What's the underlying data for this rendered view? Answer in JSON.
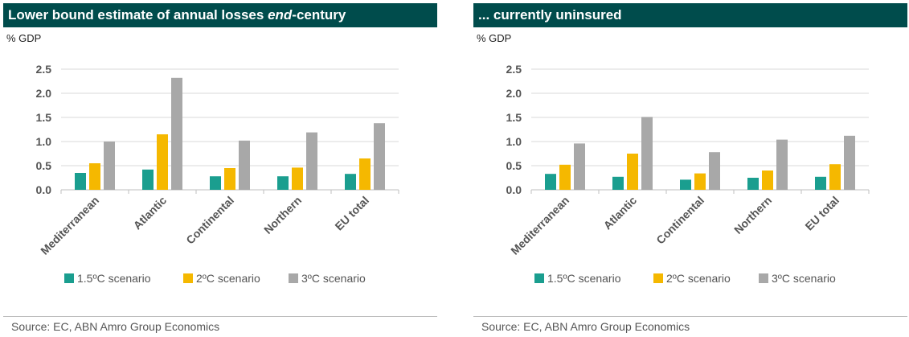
{
  "colors": {
    "title_bg": "#004c4c",
    "s15": "#1a9e8f",
    "s2": "#f5b800",
    "s3": "#a8a8a8"
  },
  "panels": [
    {
      "title_pre": "Lower bound estimate of annual losses ",
      "title_em": "end",
      "title_post": "-century",
      "unit": "% GDP",
      "source": "Source: EC, ABN Amro Group Economics"
    },
    {
      "title_pre": "... currently uninsured",
      "title_em": "",
      "title_post": "",
      "unit": "% GDP",
      "source": "Source: EC, ABN Amro Group Economics"
    }
  ],
  "chart_data": [
    {
      "type": "bar",
      "title": "Lower bound estimate of annual losses end-century",
      "ylabel": "% GDP",
      "categories": [
        "Mediterranean",
        "Atlantic",
        "Continental",
        "Northern",
        "EU total"
      ],
      "series": [
        {
          "name": "1.5ºC scenario",
          "color": "#1a9e8f",
          "values": [
            0.35,
            0.42,
            0.28,
            0.28,
            0.33
          ]
        },
        {
          "name": "2ºC scenario",
          "color": "#f5b800",
          "values": [
            0.55,
            1.15,
            0.45,
            0.46,
            0.65
          ]
        },
        {
          "name": "3ºC scenario",
          "color": "#a8a8a8",
          "values": [
            1.0,
            2.32,
            1.02,
            1.19,
            1.38
          ]
        }
      ],
      "ylim": [
        0,
        2.5
      ],
      "yticks": [
        "0.0",
        "0.5",
        "1.0",
        "1.5",
        "2.0",
        "2.5"
      ],
      "grid": true,
      "legend": "bottom"
    },
    {
      "type": "bar",
      "title": "... currently uninsured",
      "ylabel": "% GDP",
      "categories": [
        "Mediterranean",
        "Atlantic",
        "Continental",
        "Northern",
        "EU total"
      ],
      "series": [
        {
          "name": "1.5ºC scenario",
          "color": "#1a9e8f",
          "values": [
            0.33,
            0.27,
            0.21,
            0.25,
            0.27
          ]
        },
        {
          "name": "2ºC scenario",
          "color": "#f5b800",
          "values": [
            0.52,
            0.75,
            0.34,
            0.4,
            0.53
          ]
        },
        {
          "name": "3ºC scenario",
          "color": "#a8a8a8",
          "values": [
            0.96,
            1.51,
            0.78,
            1.04,
            1.12
          ]
        }
      ],
      "ylim": [
        0,
        2.5
      ],
      "yticks": [
        "0.0",
        "0.5",
        "1.0",
        "1.5",
        "2.0",
        "2.5"
      ],
      "grid": true,
      "legend": "bottom"
    }
  ]
}
